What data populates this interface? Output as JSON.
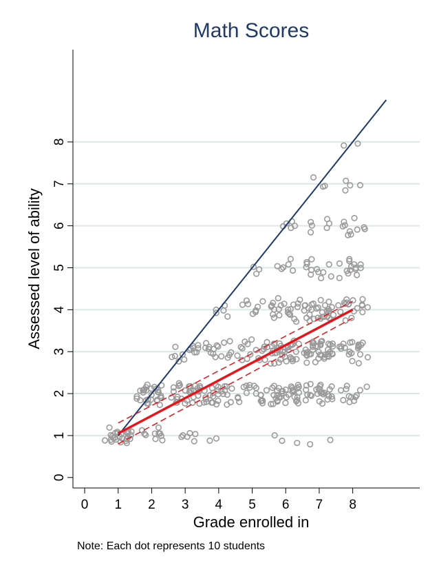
{
  "chart_data": {
    "type": "scatter",
    "title": "Math Scores",
    "xlabel": "Grade enrolled in",
    "ylabel": "Assessed level of ability",
    "note": "Note: Each dot represents 10 students",
    "xlim": [
      -0.35,
      10.0
    ],
    "ylim": [
      -0.25,
      10.2
    ],
    "xticks": [
      "0",
      "1",
      "2",
      "3",
      "4",
      "5",
      "6",
      "7",
      "8"
    ],
    "yticks": [
      "0",
      "1",
      "2",
      "3",
      "4",
      "5",
      "6",
      "7",
      "8"
    ],
    "grid": "horizontal",
    "colors": {
      "title": "#1f3a68",
      "points": "#9a9a9a",
      "diagonal": "#1f3a68",
      "fit": "#e8141c",
      "grid": "#dbe7e8"
    },
    "series": [
      {
        "type": "scatter",
        "points": [
          {
            "x": 1,
            "y": 1,
            "count": 26,
            "spread": 0.4
          },
          {
            "x": 2,
            "y": 1,
            "count": 10,
            "spread": 0.35
          },
          {
            "x": 2,
            "y": 2,
            "count": 30,
            "spread": 0.45
          },
          {
            "x": 3,
            "y": 1,
            "count": 6,
            "spread": 0.35
          },
          {
            "x": 3,
            "y": 2,
            "count": 30,
            "spread": 0.45
          },
          {
            "x": 3,
            "y": 3,
            "count": 14,
            "spread": 0.4
          },
          {
            "x": 4,
            "y": 1,
            "count": 2,
            "spread": 0.3
          },
          {
            "x": 4,
            "y": 2,
            "count": 26,
            "spread": 0.45
          },
          {
            "x": 4,
            "y": 3,
            "count": 16,
            "spread": 0.4
          },
          {
            "x": 4,
            "y": 4,
            "count": 5,
            "spread": 0.3
          },
          {
            "x": 5,
            "y": 2,
            "count": 18,
            "spread": 0.45
          },
          {
            "x": 5,
            "y": 3,
            "count": 18,
            "spread": 0.45
          },
          {
            "x": 5,
            "y": 4,
            "count": 8,
            "spread": 0.4
          },
          {
            "x": 5,
            "y": 5,
            "count": 3,
            "spread": 0.25
          },
          {
            "x": 6,
            "y": 1,
            "count": 3,
            "spread": 0.4
          },
          {
            "x": 6,
            "y": 2,
            "count": 34,
            "spread": 0.45
          },
          {
            "x": 6,
            "y": 3,
            "count": 34,
            "spread": 0.45
          },
          {
            "x": 6,
            "y": 4,
            "count": 22,
            "spread": 0.45
          },
          {
            "x": 6,
            "y": 5,
            "count": 6,
            "spread": 0.35
          },
          {
            "x": 6,
            "y": 6,
            "count": 5,
            "spread": 0.3
          },
          {
            "x": 7,
            "y": 1,
            "count": 2,
            "spread": 0.35
          },
          {
            "x": 7,
            "y": 2,
            "count": 26,
            "spread": 0.45
          },
          {
            "x": 7,
            "y": 3,
            "count": 40,
            "spread": 0.45
          },
          {
            "x": 7,
            "y": 4,
            "count": 30,
            "spread": 0.45
          },
          {
            "x": 7,
            "y": 5,
            "count": 12,
            "spread": 0.4
          },
          {
            "x": 7,
            "y": 6,
            "count": 6,
            "spread": 0.35
          },
          {
            "x": 7,
            "y": 7,
            "count": 3,
            "spread": 0.25
          },
          {
            "x": 8,
            "y": 2,
            "count": 12,
            "spread": 0.45
          },
          {
            "x": 8,
            "y": 3,
            "count": 20,
            "spread": 0.45
          },
          {
            "x": 8,
            "y": 4,
            "count": 18,
            "spread": 0.45
          },
          {
            "x": 8,
            "y": 5,
            "count": 14,
            "spread": 0.4
          },
          {
            "x": 8,
            "y": 6,
            "count": 10,
            "spread": 0.4
          },
          {
            "x": 8,
            "y": 7,
            "count": 4,
            "spread": 0.3
          },
          {
            "x": 8,
            "y": 8,
            "count": 2,
            "spread": 0.3
          }
        ]
      },
      {
        "type": "line",
        "role": "diagonal",
        "x": [
          1,
          9
        ],
        "y": [
          1,
          9
        ]
      },
      {
        "type": "line",
        "role": "fit",
        "x": [
          1,
          8
        ],
        "y": [
          1.05,
          4.0
        ]
      },
      {
        "type": "ci",
        "role": "fit-ci",
        "x": [
          1,
          8
        ],
        "upper": [
          1.3,
          4.2
        ],
        "lower": [
          0.8,
          3.8
        ]
      }
    ]
  }
}
